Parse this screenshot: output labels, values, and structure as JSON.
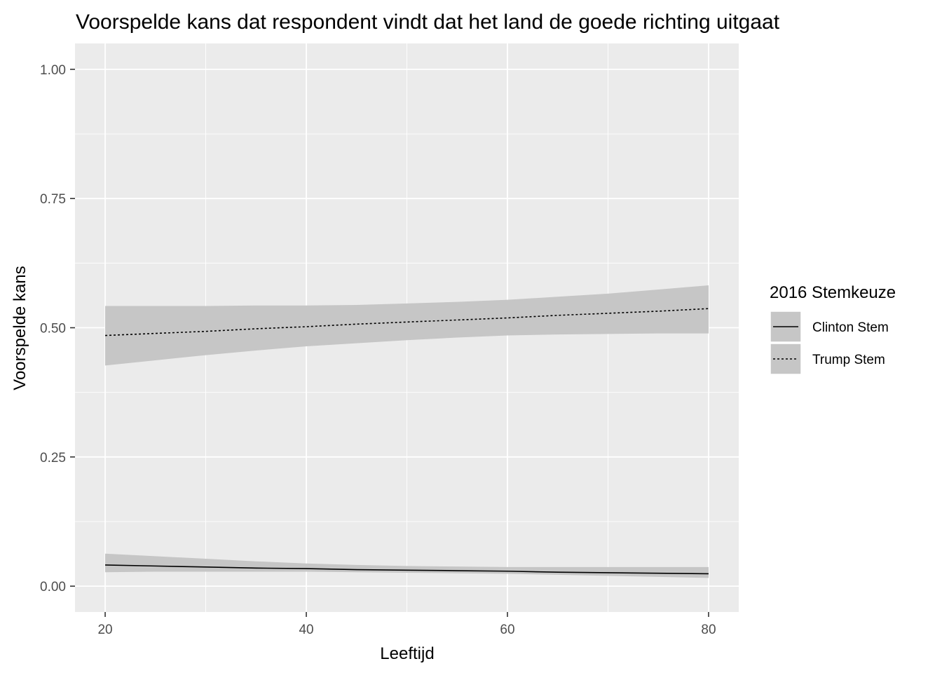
{
  "chart_data": {
    "type": "line",
    "title": "Voorspelde kans dat respondent vindt dat het land de goede richting uitgaat",
    "xlabel": "Leeftijd",
    "ylabel": "Voorspelde kans",
    "xlim": [
      17,
      83
    ],
    "ylim": [
      -0.05,
      1.05
    ],
    "x_ticks": [
      20,
      40,
      60,
      80
    ],
    "x_tick_labels": [
      "20",
      "40",
      "60",
      "80"
    ],
    "y_ticks": [
      0,
      0.25,
      0.5,
      0.75,
      1
    ],
    "y_tick_labels": [
      "0.00",
      "0.25",
      "0.50",
      "0.75",
      "1.00"
    ],
    "grid": true,
    "legend_position": "right",
    "legend_title": "2016 Stemkeuze",
    "colors": {
      "panel": "#EBEBEB",
      "grid": "#FFFFFF",
      "ribbon": "#C6C6C6",
      "line": "#000000",
      "tick": "#333333",
      "tick_label": "#4D4D4D"
    },
    "series": [
      {
        "name": "Clinton Stem",
        "linetype": "solid",
        "x": [
          20,
          25,
          30,
          35,
          40,
          45,
          50,
          55,
          60,
          65,
          70,
          75,
          80
        ],
        "y": [
          0.041,
          0.039,
          0.037,
          0.035,
          0.034,
          0.032,
          0.031,
          0.03,
          0.029,
          0.027,
          0.026,
          0.025,
          0.024
        ],
        "lower": [
          0.027,
          0.028,
          0.028,
          0.028,
          0.028,
          0.027,
          0.026,
          0.025,
          0.024,
          0.022,
          0.02,
          0.018,
          0.016
        ],
        "upper": [
          0.063,
          0.058,
          0.053,
          0.048,
          0.044,
          0.041,
          0.039,
          0.038,
          0.037,
          0.037,
          0.037,
          0.037,
          0.037
        ]
      },
      {
        "name": "Trump Stem",
        "linetype": "dotted",
        "x": [
          20,
          25,
          30,
          35,
          40,
          45,
          50,
          55,
          60,
          65,
          70,
          75,
          80
        ],
        "y": [
          0.485,
          0.489,
          0.493,
          0.498,
          0.502,
          0.507,
          0.511,
          0.515,
          0.519,
          0.524,
          0.528,
          0.532,
          0.537
        ],
        "lower": [
          0.427,
          0.437,
          0.447,
          0.456,
          0.464,
          0.47,
          0.476,
          0.481,
          0.485,
          0.487,
          0.488,
          0.489,
          0.489
        ],
        "upper": [
          0.542,
          0.542,
          0.542,
          0.543,
          0.543,
          0.544,
          0.547,
          0.55,
          0.554,
          0.56,
          0.566,
          0.574,
          0.582
        ]
      }
    ]
  }
}
